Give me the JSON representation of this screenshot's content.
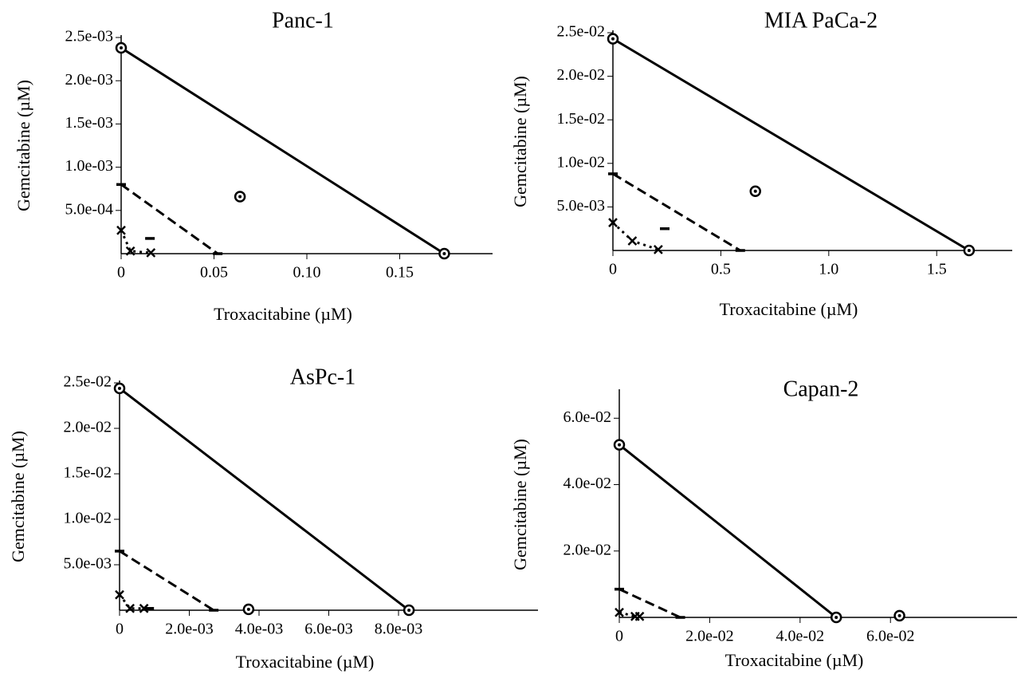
{
  "chart_data": [
    {
      "type": "line",
      "title": "Panc-1",
      "xlabel": "Troxacitabine (µM)",
      "ylabel": "Gemcitabine (µM)",
      "xlim": [
        0,
        0.2
      ],
      "ylim": [
        0,
        0.0025
      ],
      "xticks": [
        0,
        0.05,
        {
          "value": 0.1,
          "label": "0.10"
        },
        0.15
      ],
      "yticks": [
        {
          "value": 0.0005,
          "label": "5.0e-04"
        },
        {
          "value": 0.001,
          "label": "1.0e-03"
        },
        {
          "value": 0.0015,
          "label": "1.5e-03"
        },
        {
          "value": 0.002,
          "label": "2.0e-03"
        },
        {
          "value": 0.0025,
          "label": "2.5e-03"
        }
      ],
      "series": [
        {
          "color": "#000000",
          "line": "solid",
          "marker": "circle",
          "x": [
            0,
            0.174
          ],
          "values": [
            0.00238,
            0
          ]
        },
        {
          "color": "#000000",
          "line": "dashed",
          "marker": "dash",
          "x": [
            0,
            0.052
          ],
          "values": [
            0.0008,
            0
          ]
        },
        {
          "color": "#000000",
          "line": "dotted",
          "marker": "cross",
          "x": [
            0,
            0.005,
            0.016
          ],
          "values": [
            0.00027,
            3e-05,
            1e-05
          ]
        },
        {
          "color": "#000000",
          "line": "none",
          "marker": "circle",
          "x": [
            0.064
          ],
          "values": [
            0.00066
          ]
        },
        {
          "color": "#000000",
          "line": "none",
          "marker": "dash",
          "x": [
            0.0155
          ],
          "values": [
            0.000176
          ]
        }
      ]
    },
    {
      "type": "line",
      "title": "MIA PaCa-2",
      "xlabel": "Troxacitabine (µM)",
      "ylabel": "Gemcitabine (µM)",
      "xlim": [
        0,
        1.85
      ],
      "ylim": [
        0,
        0.025
      ],
      "xticks": [
        0,
        0.5,
        {
          "value": 1,
          "label": "1.0"
        },
        1.5
      ],
      "yticks": [
        {
          "value": 0.005,
          "label": "5.0e-03"
        },
        {
          "value": 0.01,
          "label": "1.0e-02"
        },
        {
          "value": 0.015,
          "label": "1.5e-02"
        },
        {
          "value": 0.02,
          "label": "2.0e-02"
        },
        {
          "value": 0.025,
          "label": "2.5e-02"
        }
      ],
      "series": [
        {
          "color": "#000000",
          "line": "solid",
          "marker": "circle",
          "x": [
            0,
            1.65
          ],
          "values": [
            0.0243,
            0
          ]
        },
        {
          "color": "#000000",
          "line": "dashed",
          "marker": "dash",
          "x": [
            0,
            0.59
          ],
          "values": [
            0.0088,
            0
          ]
        },
        {
          "color": "#000000",
          "line": "dotted",
          "marker": "cross",
          "x": [
            0,
            0.09,
            0.21
          ],
          "values": [
            0.0032,
            0.0011,
            0.0001
          ]
        },
        {
          "color": "#000000",
          "line": "none",
          "marker": "circle",
          "x": [
            0.66
          ],
          "values": [
            0.0068
          ]
        },
        {
          "color": "#000000",
          "line": "none",
          "marker": "dash",
          "x": [
            0.24
          ],
          "values": [
            0.0025
          ]
        }
      ]
    },
    {
      "type": "line",
      "title": "AsPc-1",
      "xlabel": "Troxacitabine (µM)",
      "ylabel": "Gemcitabine (µM)",
      "xlim": [
        0,
        0.012
      ],
      "ylim": [
        0,
        0.025
      ],
      "xticks": [
        0,
        {
          "value": 0.002,
          "label": "2.0e-03"
        },
        {
          "value": 0.004,
          "label": "4.0e-03"
        },
        {
          "value": 0.006,
          "label": "6.0e-03"
        },
        {
          "value": 0.008,
          "label": "8.0e-03"
        }
      ],
      "yticks": [
        {
          "value": 0.005,
          "label": "5.0e-03"
        },
        {
          "value": 0.01,
          "label": "1.0e-02"
        },
        {
          "value": 0.015,
          "label": "1.5e-02"
        },
        {
          "value": 0.02,
          "label": "2.0e-02"
        },
        {
          "value": 0.025,
          "label": "2.5e-02"
        }
      ],
      "series": [
        {
          "color": "#000000",
          "line": "solid",
          "marker": "circle",
          "x": [
            0,
            0.0083
          ],
          "values": [
            0.0244,
            0
          ]
        },
        {
          "color": "#000000",
          "line": "dashed",
          "marker": "dash",
          "x": [
            0,
            0.0027
          ],
          "values": [
            0.0065,
            0
          ]
        },
        {
          "color": "#000000",
          "line": "dotted",
          "marker": "cross",
          "x": [
            0,
            0.0003,
            0.0007
          ],
          "values": [
            0.0017,
            0.0002,
            0.0002
          ]
        },
        {
          "color": "#000000",
          "line": "none",
          "marker": "circle",
          "x": [
            0.0037
          ],
          "values": [
            0.0001
          ]
        },
        {
          "color": "#000000",
          "line": "none",
          "marker": "dash",
          "x": [
            0.00085
          ],
          "values": [
            0.0002
          ]
        }
      ]
    },
    {
      "type": "line",
      "title": "Capan-2",
      "xlabel": "Troxacitabine (µM)",
      "ylabel": "Gemcitabine (µM)",
      "xlim": [
        0,
        0.088
      ],
      "ylim": [
        0,
        0.068
      ],
      "xticks": [
        0,
        {
          "value": 0.02,
          "label": "2.0e-02"
        },
        {
          "value": 0.04,
          "label": "4.0e-02"
        },
        {
          "value": 0.06,
          "label": "6.0e-02"
        }
      ],
      "yticks": [
        {
          "value": 0.02,
          "label": "2.0e-02"
        },
        {
          "value": 0.04,
          "label": "4.0e-02"
        },
        {
          "value": 0.06,
          "label": "6.0e-02"
        }
      ],
      "series": [
        {
          "color": "#000000",
          "line": "solid",
          "marker": "circle",
          "x": [
            0,
            0.048
          ],
          "values": [
            0.052,
            0
          ]
        },
        {
          "color": "#000000",
          "line": "dashed",
          "marker": "dash",
          "x": [
            0,
            0.0135
          ],
          "values": [
            0.0085,
            0
          ]
        },
        {
          "color": "#000000",
          "line": "dotted",
          "marker": "cross",
          "x": [
            0,
            0.0035,
            0.0045
          ],
          "values": [
            0.0015,
            0.0003,
            0.0003
          ]
        },
        {
          "color": "#000000",
          "line": "none",
          "marker": "circle",
          "x": [
            0.062
          ],
          "values": [
            0.0005
          ]
        }
      ]
    }
  ]
}
